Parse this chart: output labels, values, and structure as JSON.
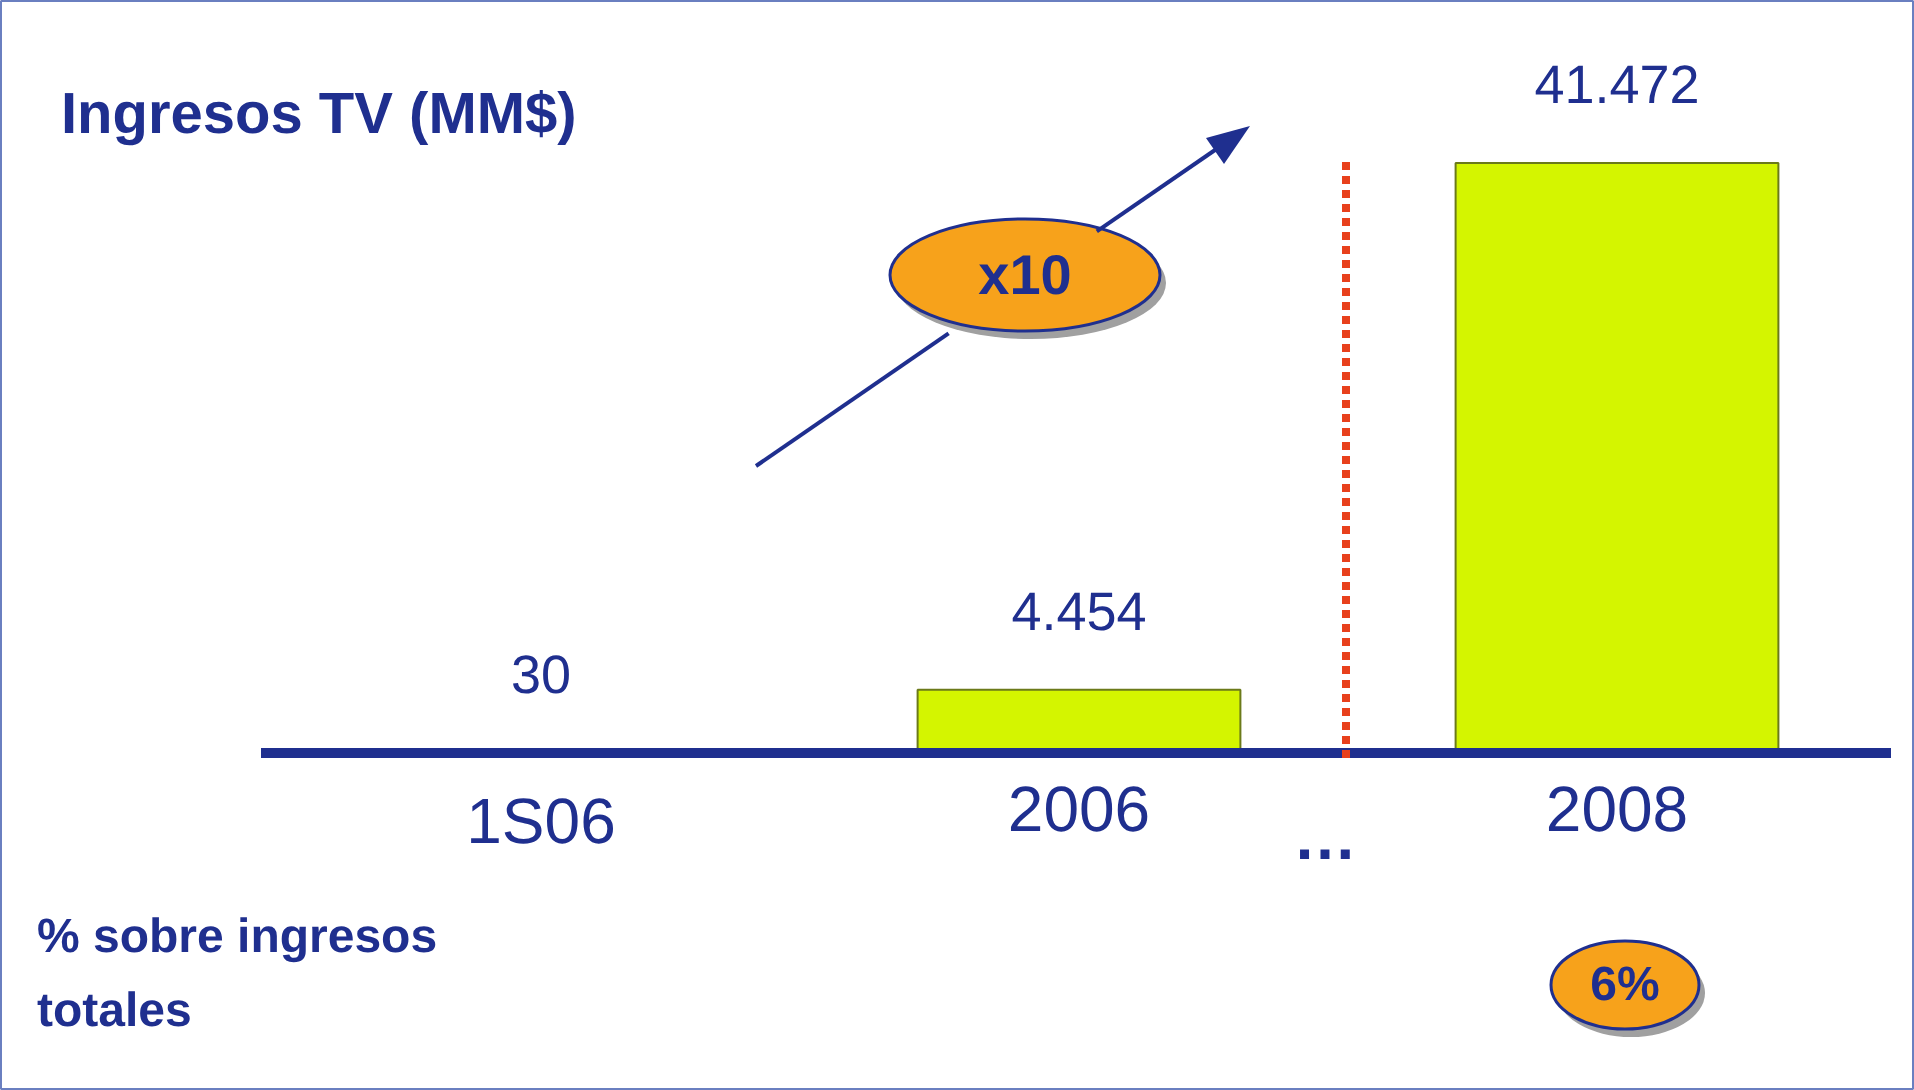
{
  "chart_data": {
    "type": "bar",
    "title": "Ingresos TV (MM$)",
    "categories": [
      "1S06",
      "2006",
      "2008"
    ],
    "values": [
      30,
      4454,
      41472
    ],
    "value_labels": [
      "30",
      "4.454",
      "41.472"
    ],
    "color": "#d4f500",
    "annotations": [
      "x10",
      "…",
      "% sobre ingresos totales",
      "6%"
    ]
  }
}
